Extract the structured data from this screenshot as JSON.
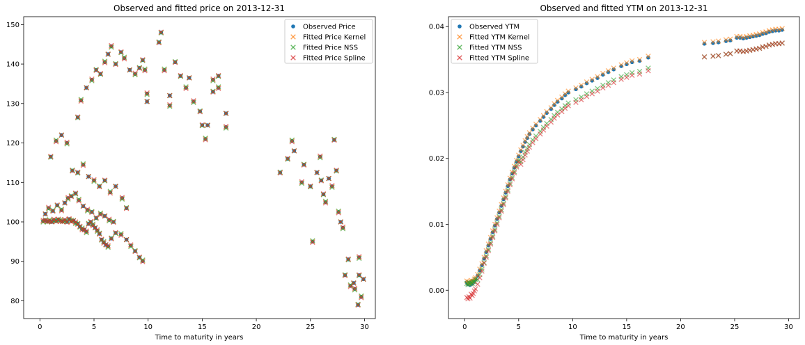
{
  "chart_data": [
    {
      "type": "scatter",
      "title": "Observed and fitted price on 2013-12-31",
      "xlabel": "Time to maturity in years",
      "ylabel": "",
      "xlim": [
        -1.5,
        31
      ],
      "ylim": [
        75.5,
        152
      ],
      "xticks": [
        0,
        5,
        10,
        15,
        20,
        25,
        30
      ],
      "yticks": [
        80,
        90,
        100,
        110,
        120,
        130,
        140,
        150
      ],
      "legend_position": "top-right",
      "series": [
        {
          "name": "Observed Price",
          "marker": "dot",
          "color": "#1f77b4",
          "points": [
            [
              0.3,
              100.2
            ],
            [
              0.5,
              100.4
            ],
            [
              0.7,
              100.1
            ],
            [
              0.9,
              100.3
            ],
            [
              1.1,
              100.0
            ],
            [
              1.3,
              100.5
            ],
            [
              1.5,
              100.2
            ],
            [
              1.7,
              100.6
            ],
            [
              1.9,
              100.3
            ],
            [
              2.1,
              100.1
            ],
            [
              2.3,
              100.4
            ],
            [
              2.5,
              100.0
            ],
            [
              2.7,
              100.7
            ],
            [
              2.9,
              100.2
            ],
            [
              3.1,
              100.3
            ],
            [
              3.3,
              99.8
            ],
            [
              3.5,
              99.5
            ],
            [
              3.7,
              98.8
            ],
            [
              3.9,
              98.2
            ],
            [
              4.1,
              98.0
            ],
            [
              4.3,
              97.5
            ],
            [
              4.5,
              99.5
            ],
            [
              4.7,
              100.0
            ],
            [
              4.9,
              99.2
            ],
            [
              5.1,
              98.5
            ],
            [
              5.3,
              97.8
            ],
            [
              5.5,
              97.0
            ],
            [
              5.7,
              95.5
            ],
            [
              5.9,
              94.8
            ],
            [
              6.1,
              94.2
            ],
            [
              6.3,
              93.8
            ],
            [
              6.6,
              95.8
            ],
            [
              7.0,
              97.2
            ],
            [
              7.5,
              96.8
            ],
            [
              8.0,
              95.5
            ],
            [
              8.4,
              94.0
            ],
            [
              8.8,
              92.6
            ],
            [
              9.2,
              91.0
            ],
            [
              9.5,
              90.1
            ],
            [
              0.5,
              102.0
            ],
            [
              0.8,
              103.5
            ],
            [
              1.2,
              102.8
            ],
            [
              1.6,
              104.2
            ],
            [
              2.0,
              103.0
            ],
            [
              2.3,
              104.8
            ],
            [
              2.6,
              106.0
            ],
            [
              2.9,
              106.5
            ],
            [
              3.3,
              107.2
            ],
            [
              3.6,
              105.5
            ],
            [
              4.0,
              104.0
            ],
            [
              4.4,
              103.0
            ],
            [
              4.8,
              102.5
            ],
            [
              5.2,
              101.0
            ],
            [
              5.6,
              102.0
            ],
            [
              6.0,
              101.5
            ],
            [
              6.4,
              100.5
            ],
            [
              6.8,
              100.0
            ],
            [
              1.0,
              116.5
            ],
            [
              1.5,
              120.5
            ],
            [
              2.0,
              122.0
            ],
            [
              2.5,
              120.0
            ],
            [
              3.0,
              113.0
            ],
            [
              3.5,
              112.5
            ],
            [
              4.0,
              114.5
            ],
            [
              4.5,
              111.5
            ],
            [
              5.0,
              110.5
            ],
            [
              5.5,
              109.0
            ],
            [
              6.0,
              110.5
            ],
            [
              6.5,
              107.5
            ],
            [
              7.0,
              109.0
            ],
            [
              7.6,
              106.0
            ],
            [
              8.0,
              103.5
            ],
            [
              3.5,
              126.5
            ],
            [
              3.8,
              130.8
            ],
            [
              4.3,
              134.0
            ],
            [
              4.8,
              136.0
            ],
            [
              5.2,
              138.5
            ],
            [
              5.6,
              137.5
            ],
            [
              6.0,
              140.5
            ],
            [
              6.3,
              142.5
            ],
            [
              6.6,
              144.5
            ],
            [
              7.0,
              140.0
            ],
            [
              7.5,
              143.0
            ],
            [
              7.8,
              141.5
            ],
            [
              8.3,
              138.5
            ],
            [
              8.8,
              137.5
            ],
            [
              9.2,
              139.0
            ],
            [
              9.5,
              141.0
            ],
            [
              9.7,
              138.5
            ],
            [
              9.9,
              130.5
            ],
            [
              9.9,
              132.5
            ],
            [
              11.0,
              145.5
            ],
            [
              11.2,
              148.0
            ],
            [
              11.5,
              138.5
            ],
            [
              12.0,
              132.0
            ],
            [
              12.0,
              129.5
            ],
            [
              12.5,
              140.5
            ],
            [
              13.0,
              137.0
            ],
            [
              13.5,
              134.0
            ],
            [
              13.8,
              136.5
            ],
            [
              14.2,
              130.5
            ],
            [
              14.8,
              128.0
            ],
            [
              15.0,
              124.5
            ],
            [
              15.3,
              121.0
            ],
            [
              15.5,
              124.5
            ],
            [
              16.0,
              136.0
            ],
            [
              16.0,
              133.0
            ],
            [
              16.5,
              137.0
            ],
            [
              16.5,
              134.0
            ],
            [
              17.2,
              127.5
            ],
            [
              17.2,
              124.0
            ],
            [
              22.2,
              112.5
            ],
            [
              22.9,
              116.0
            ],
            [
              23.3,
              120.5
            ],
            [
              23.5,
              118.0
            ],
            [
              24.2,
              110.0
            ],
            [
              24.4,
              114.5
            ],
            [
              25.0,
              109.0
            ],
            [
              25.2,
              95.0
            ],
            [
              25.6,
              112.5
            ],
            [
              25.9,
              116.5
            ],
            [
              26.0,
              110.5
            ],
            [
              26.2,
              107.0
            ],
            [
              26.4,
              105.0
            ],
            [
              26.7,
              111.0
            ],
            [
              27.0,
              109.0
            ],
            [
              27.2,
              120.8
            ],
            [
              27.4,
              113.0
            ],
            [
              27.6,
              102.5
            ],
            [
              27.8,
              100.0
            ],
            [
              28.0,
              98.5
            ],
            [
              28.2,
              86.5
            ],
            [
              28.5,
              90.5
            ],
            [
              28.7,
              83.8
            ],
            [
              29.0,
              84.5
            ],
            [
              29.1,
              83.0
            ],
            [
              29.4,
              79.0
            ],
            [
              29.5,
              86.5
            ],
            [
              29.7,
              81.0
            ],
            [
              29.9,
              85.5
            ],
            [
              29.5,
              91.0
            ]
          ]
        },
        {
          "name": "Fitted Price Kernel",
          "marker": "x",
          "color": "#ff7f0e",
          "offset": 0.15
        },
        {
          "name": "Fitted Price NSS",
          "marker": "x",
          "color": "#2ca02c",
          "offset": 0.6
        },
        {
          "name": "Fitted Price Spline",
          "marker": "x",
          "color": "#d62728",
          "offset": -0.5
        }
      ]
    },
    {
      "type": "scatter",
      "title": "Observed and fitted YTM on 2013-12-31",
      "xlabel": "Time to maturity in years",
      "ylabel": "",
      "xlim": [
        -1.5,
        31
      ],
      "ylim": [
        -0.0043,
        0.0415
      ],
      "xticks": [
        0,
        5,
        10,
        15,
        20,
        25,
        30
      ],
      "yticks": [
        0.0,
        0.01,
        0.02,
        0.03,
        0.04
      ],
      "ytick_labels": [
        "0.00",
        "0.01",
        "0.02",
        "0.03",
        "0.04"
      ],
      "legend_position": "top-left",
      "series": [
        {
          "name": "Observed YTM",
          "marker": "dot",
          "color": "#1f77b4",
          "points": [
            [
              0.2,
              0.0012
            ],
            [
              0.3,
              0.0009
            ],
            [
              0.4,
              0.0011
            ],
            [
              0.5,
              0.0008
            ],
            [
              0.6,
              0.0013
            ],
            [
              0.7,
              0.001
            ],
            [
              0.8,
              0.0012
            ],
            [
              0.9,
              0.0015
            ],
            [
              1.0,
              0.0017
            ],
            [
              1.2,
              0.0022
            ],
            [
              1.4,
              0.003
            ],
            [
              1.6,
              0.0038
            ],
            [
              1.8,
              0.0048
            ],
            [
              2.0,
              0.0058
            ],
            [
              2.2,
              0.0068
            ],
            [
              2.4,
              0.0078
            ],
            [
              2.6,
              0.0088
            ],
            [
              2.8,
              0.0098
            ],
            [
              3.0,
              0.0108
            ],
            [
              3.2,
              0.0118
            ],
            [
              3.4,
              0.0128
            ],
            [
              3.6,
              0.0138
            ],
            [
              3.8,
              0.0148
            ],
            [
              4.0,
              0.0158
            ],
            [
              4.2,
              0.0168
            ],
            [
              4.4,
              0.0177
            ],
            [
              4.6,
              0.0186
            ],
            [
              4.8,
              0.0195
            ],
            [
              5.0,
              0.0203
            ],
            [
              5.2,
              0.0211
            ],
            [
              5.4,
              0.0218
            ],
            [
              5.6,
              0.0225
            ],
            [
              5.8,
              0.0231
            ],
            [
              6.0,
              0.0237
            ],
            [
              6.3,
              0.0244
            ],
            [
              6.6,
              0.025
            ],
            [
              7.0,
              0.0257
            ],
            [
              7.3,
              0.0263
            ],
            [
              7.6,
              0.0269
            ],
            [
              8.0,
              0.0275
            ],
            [
              8.3,
              0.0281
            ],
            [
              8.6,
              0.0286
            ],
            [
              9.0,
              0.0291
            ],
            [
              9.3,
              0.0296
            ],
            [
              9.6,
              0.03
            ],
            [
              10.3,
              0.0305
            ],
            [
              10.8,
              0.0309
            ],
            [
              11.3,
              0.0314
            ],
            [
              11.8,
              0.0318
            ],
            [
              12.3,
              0.0322
            ],
            [
              12.8,
              0.0327
            ],
            [
              13.3,
              0.0331
            ],
            [
              13.8,
              0.0335
            ],
            [
              14.5,
              0.034
            ],
            [
              15.0,
              0.0343
            ],
            [
              15.5,
              0.0346
            ],
            [
              16.2,
              0.0348
            ],
            [
              17.0,
              0.0353
            ],
            [
              22.2,
              0.0374
            ],
            [
              23.0,
              0.0375
            ],
            [
              23.5,
              0.0376
            ],
            [
              24.2,
              0.0378
            ],
            [
              24.6,
              0.0379
            ],
            [
              25.2,
              0.0383
            ],
            [
              25.5,
              0.0383
            ],
            [
              25.8,
              0.0382
            ],
            [
              26.1,
              0.0383
            ],
            [
              26.4,
              0.0384
            ],
            [
              26.7,
              0.0385
            ],
            [
              27.0,
              0.0386
            ],
            [
              27.3,
              0.0387
            ],
            [
              27.6,
              0.0389
            ],
            [
              27.9,
              0.039
            ],
            [
              28.2,
              0.0392
            ],
            [
              28.5,
              0.0393
            ],
            [
              28.8,
              0.0394
            ],
            [
              29.1,
              0.0394
            ],
            [
              29.4,
              0.0395
            ]
          ]
        },
        {
          "name": "Fitted YTM Kernel",
          "marker": "x",
          "color": "#ff7f0e",
          "offset": 0.0002
        },
        {
          "name": "Fitted YTM NSS",
          "marker": "x",
          "color": "#2ca02c",
          "offset": -0.0012
        },
        {
          "name": "Fitted YTM Spline",
          "marker": "x",
          "color": "#d62728",
          "offset": -0.0015
        }
      ]
    }
  ]
}
